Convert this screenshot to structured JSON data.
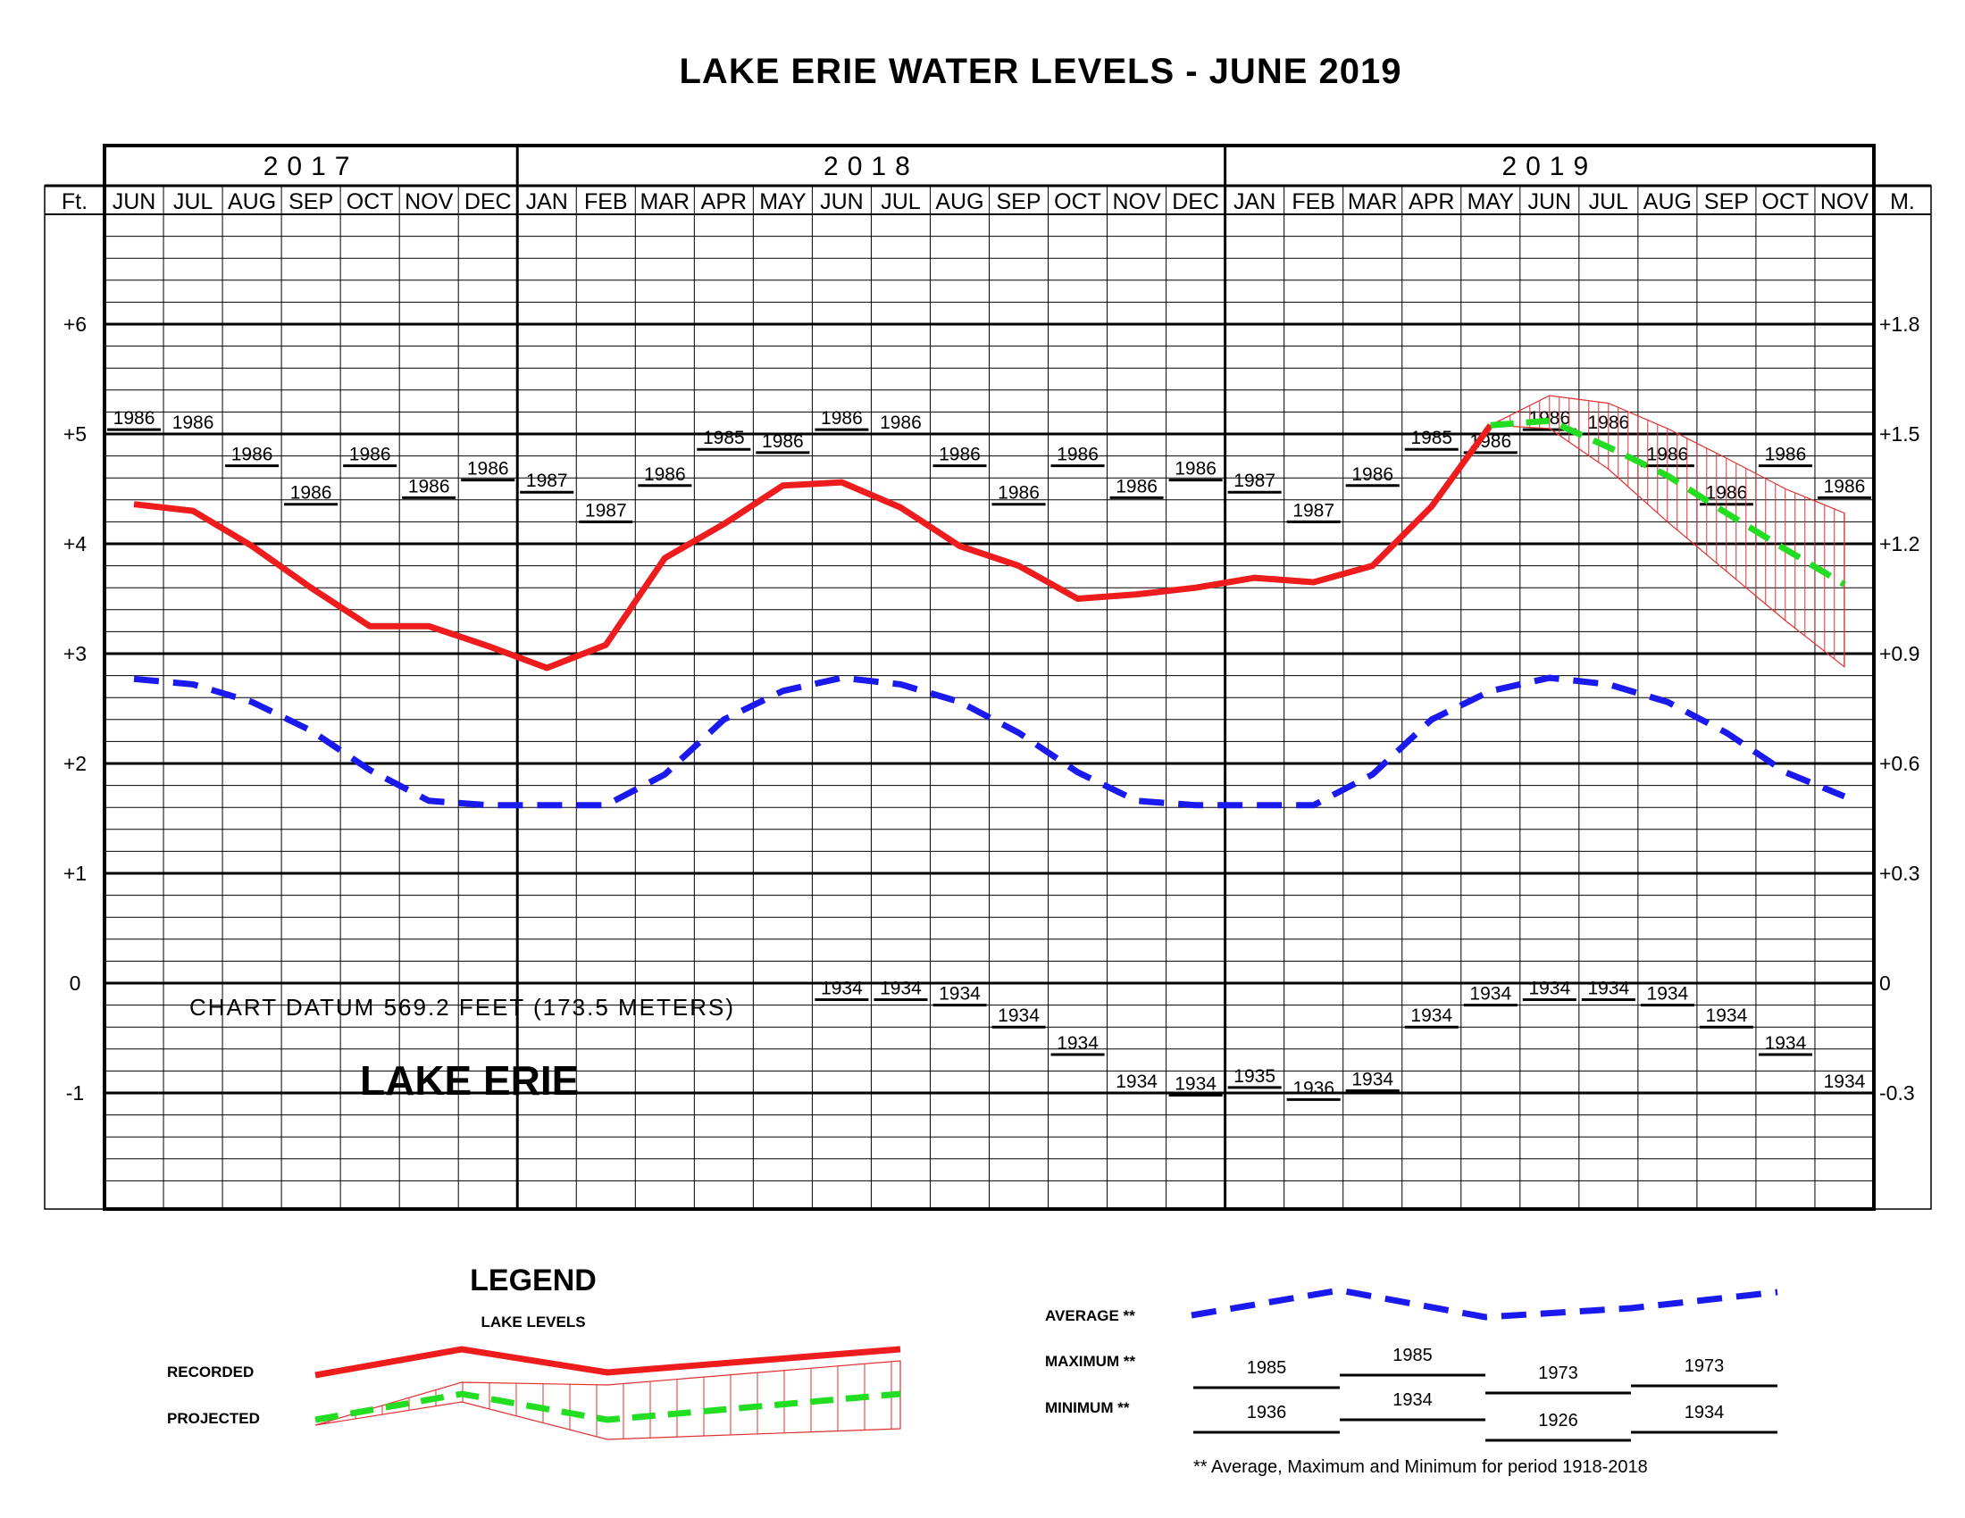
{
  "title": "LAKE ERIE WATER LEVELS - JUNE 2019",
  "years": [
    "2017",
    "2018",
    "2019"
  ],
  "months": [
    "JUN",
    "JUL",
    "AUG",
    "SEP",
    "OCT",
    "NOV",
    "DEC",
    "JAN",
    "FEB",
    "MAR",
    "APR",
    "MAY",
    "JUN",
    "JUL",
    "AUG",
    "SEP",
    "OCT",
    "NOV",
    "DEC",
    "JAN",
    "FEB",
    "MAR",
    "APR",
    "MAY",
    "JUN",
    "JUL",
    "AUG",
    "SEP",
    "OCT",
    "NOV"
  ],
  "left_axis": {
    "unit": "Ft.",
    "ticks": [
      "+6",
      "+5",
      "+4",
      "+3",
      "+2",
      "+1",
      "0",
      "-1"
    ]
  },
  "right_axis": {
    "unit": "M.",
    "ticks": [
      "+1.8",
      "+1.5",
      "+1.2",
      "+0.9",
      "+0.6",
      "+0.3",
      "0",
      "-0.3"
    ]
  },
  "chart_datum": "CHART DATUM 569.2 FEET (173.5 METERS)",
  "lake_name": "LAKE ERIE",
  "colors": {
    "recorded": "#ee1c1c",
    "average": "#1a1aee",
    "projected": "#22dd22",
    "hatch": "#e03030"
  },
  "chart_data": {
    "type": "line",
    "title": "LAKE ERIE WATER LEVELS - JUNE 2019",
    "xlabel": "",
    "ylabel": "Ft.",
    "ylim": [
      -2,
      7
    ],
    "x": [
      "2017-06",
      "2017-07",
      "2017-08",
      "2017-09",
      "2017-10",
      "2017-11",
      "2017-12",
      "2018-01",
      "2018-02",
      "2018-03",
      "2018-04",
      "2018-05",
      "2018-06",
      "2018-07",
      "2018-08",
      "2018-09",
      "2018-10",
      "2018-11",
      "2018-12",
      "2019-01",
      "2019-02",
      "2019-03",
      "2019-04",
      "2019-05",
      "2019-06",
      "2019-07",
      "2019-08",
      "2019-09",
      "2019-10",
      "2019-11"
    ],
    "series": [
      {
        "name": "RECORDED",
        "values": [
          4.36,
          4.3,
          3.98,
          3.6,
          3.25,
          3.25,
          3.07,
          2.87,
          3.08,
          3.87,
          4.18,
          4.53,
          4.56,
          4.33,
          3.98,
          3.8,
          3.5,
          3.54,
          3.6,
          3.69,
          3.65,
          3.8,
          4.34,
          5.08,
          null,
          null,
          null,
          null,
          null,
          null
        ]
      },
      {
        "name": "AVERAGE",
        "values": [
          2.77,
          2.72,
          2.56,
          2.3,
          1.94,
          1.66,
          1.62,
          1.62,
          1.62,
          1.9,
          2.4,
          2.66,
          2.78,
          2.72,
          2.56,
          2.28,
          1.92,
          1.66,
          1.62,
          1.62,
          1.62,
          1.9,
          2.4,
          2.66,
          2.78,
          2.72,
          2.56,
          2.28,
          1.92,
          1.7
        ]
      },
      {
        "name": "PROJECTED",
        "values": [
          null,
          null,
          null,
          null,
          null,
          null,
          null,
          null,
          null,
          null,
          null,
          null,
          null,
          null,
          null,
          null,
          null,
          null,
          null,
          null,
          null,
          null,
          null,
          5.08,
          5.12,
          4.88,
          4.62,
          4.28,
          3.95,
          3.63
        ]
      }
    ],
    "projected_range": {
      "x": [
        "2019-05",
        "2019-06",
        "2019-07",
        "2019-08",
        "2019-09",
        "2019-10",
        "2019-11"
      ],
      "upper": [
        5.08,
        5.35,
        5.28,
        5.05,
        4.78,
        4.5,
        4.28
      ],
      "lower": [
        5.08,
        5.05,
        4.68,
        4.2,
        3.75,
        3.3,
        2.88
      ]
    },
    "maximum": {
      "values": [
        5.04,
        5.0,
        4.71,
        4.36,
        4.71,
        4.42,
        4.58,
        4.47,
        4.2,
        4.53,
        4.86,
        4.83,
        5.04,
        5.0,
        4.71,
        4.36,
        4.71,
        4.42,
        4.58,
        4.47,
        4.2,
        4.53,
        4.86,
        4.83,
        5.04,
        5.0,
        4.71,
        4.36,
        4.71,
        4.42
      ],
      "years": [
        "1986",
        "1986",
        "1986",
        "1986",
        "1986",
        "1986",
        "1986",
        "1987",
        "1987",
        "1986",
        "1985",
        "1986",
        "1986",
        "1986",
        "1986",
        "1986",
        "1986",
        "1986",
        "1986",
        "1987",
        "1987",
        "1986",
        "1985",
        "1986",
        "1986",
        "1986",
        "1986",
        "1986",
        "1986",
        "1986"
      ]
    },
    "minimum": {
      "values": [
        null,
        null,
        null,
        null,
        null,
        null,
        null,
        null,
        null,
        null,
        null,
        null,
        -0.15,
        -0.15,
        -0.2,
        -0.4,
        -0.65,
        -1.0,
        -1.02,
        -0.95,
        -1.06,
        -0.98,
        -0.4,
        -0.2,
        -0.15,
        -0.15,
        -0.2,
        -0.4,
        -0.65,
        -1.0
      ],
      "years": [
        "",
        "",
        "",
        "",
        "",
        "",
        "",
        "",
        "",
        "",
        "",
        "",
        "1934",
        "1934",
        "1934",
        "1934",
        "1934",
        "1934",
        "1934",
        "1935",
        "1936",
        "1934",
        "1934",
        "1934",
        "1934",
        "1934",
        "1934",
        "1934",
        "1934",
        "1934"
      ]
    }
  },
  "legend": {
    "title": "LEGEND",
    "subtitle": "LAKE LEVELS",
    "recorded_label": "RECORDED",
    "projected_label": "PROJECTED",
    "average_label": "AVERAGE **",
    "maximum_label": "MAXIMUM **",
    "minimum_label": "MINIMUM **",
    "max_years": [
      "1985",
      "1985",
      "1973",
      "1973"
    ],
    "min_years": [
      "1936",
      "1934",
      "1926",
      "1934"
    ],
    "footnote": "** Average, Maximum and Minimum for period 1918-2018"
  }
}
